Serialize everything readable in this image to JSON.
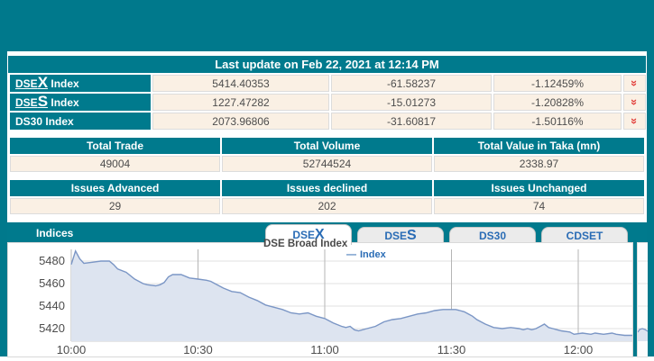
{
  "colors": {
    "teal": "#00798c",
    "header_teal": "#007a8d",
    "cell_bg": "#faf0e4",
    "tab_text": "#2a6cb5",
    "arrow_red": "#e2403c"
  },
  "update_bar": {
    "text": "Last update on Feb 22, 2021 at 12:14 PM"
  },
  "index_table": {
    "rows": [
      {
        "label_parts": [
          {
            "t": "DSE"
          },
          {
            "t": "X",
            "big": true
          }
        ],
        "label_suffix": " Index",
        "underline": true,
        "value": "5414.40353",
        "change": "-61.58237",
        "percent": "-1.12459%",
        "arrow_icon": "double-chevron-down"
      },
      {
        "label_parts": [
          {
            "t": "DSE"
          },
          {
            "t": "S",
            "big": true
          }
        ],
        "label_suffix": " Index",
        "underline": true,
        "value": "1227.47282",
        "change": "-15.01273",
        "percent": "-1.20828%",
        "arrow_icon": "double-chevron-down"
      },
      {
        "label_parts": [
          {
            "t": "DS30"
          }
        ],
        "label_suffix": " Index",
        "underline": false,
        "value": "2073.96806",
        "change": "-31.60817",
        "percent": "-1.50116%",
        "arrow_icon": "double-chevron-down"
      }
    ]
  },
  "totals_table": {
    "headers": [
      "Total Trade",
      "Total Volume",
      "Total Value in Taka (mn)"
    ],
    "values": [
      "49004",
      "52744524",
      "2338.97"
    ]
  },
  "issues_table": {
    "headers": [
      "Issues Advanced",
      "Issues declined",
      "Issues Unchanged"
    ],
    "values": [
      "29",
      "202",
      "74"
    ]
  },
  "indices_section": {
    "title": "Indices",
    "tabs": [
      {
        "parts": [
          {
            "t": "DSE"
          },
          {
            "t": "X",
            "big": true
          }
        ],
        "active": true
      },
      {
        "parts": [
          {
            "t": "DSE"
          },
          {
            "t": "S",
            "big": true
          }
        ],
        "active": false
      },
      {
        "parts": [
          {
            "t": "DS30"
          }
        ],
        "active": false
      },
      {
        "parts": [
          {
            "t": "CDSET"
          }
        ],
        "active": false
      }
    ]
  },
  "chart_data": {
    "type": "area",
    "title": "DSE Broad Index",
    "legend": [
      {
        "label": "Index"
      }
    ],
    "legend_position": "top-center",
    "grid": true,
    "x_unit": "minutes since 10:00",
    "x_tick_minutes": [
      0,
      30,
      60,
      90,
      120
    ],
    "x_tick_labels": [
      "10:00",
      "10:30",
      "11:00",
      "11:30",
      "12:00"
    ],
    "x_range_minutes": [
      0,
      133
    ],
    "y_ticks": [
      5420,
      5440,
      5460,
      5480
    ],
    "ylim": [
      5409,
      5490
    ],
    "colors": {
      "line": "#7b96c5",
      "fill": "#dde4f0",
      "axis_text": "#4d4d4d",
      "vgrid": "#b5b5b5",
      "hgrid": "#e2e2e2"
    },
    "series": [
      {
        "name": "Index",
        "points": [
          [
            0,
            5477
          ],
          [
            1,
            5489
          ],
          [
            2,
            5482
          ],
          [
            3,
            5478
          ],
          [
            5,
            5479
          ],
          [
            7,
            5480
          ],
          [
            9,
            5480
          ],
          [
            10,
            5477
          ],
          [
            11,
            5473
          ],
          [
            13,
            5470
          ],
          [
            15,
            5464
          ],
          [
            17,
            5460
          ],
          [
            18,
            5459
          ],
          [
            20,
            5458
          ],
          [
            21,
            5459
          ],
          [
            22,
            5461
          ],
          [
            23,
            5466
          ],
          [
            24,
            5468
          ],
          [
            26,
            5468
          ],
          [
            28,
            5465
          ],
          [
            30,
            5464
          ],
          [
            32,
            5463
          ],
          [
            33,
            5462
          ],
          [
            34,
            5460
          ],
          [
            36,
            5456
          ],
          [
            38,
            5453
          ],
          [
            40,
            5452
          ],
          [
            42,
            5448
          ],
          [
            44,
            5445
          ],
          [
            46,
            5441
          ],
          [
            48,
            5439
          ],
          [
            50,
            5437
          ],
          [
            52,
            5434
          ],
          [
            54,
            5433
          ],
          [
            56,
            5434
          ],
          [
            58,
            5431
          ],
          [
            60,
            5429
          ],
          [
            62,
            5425
          ],
          [
            64,
            5422
          ],
          [
            65,
            5421
          ],
          [
            66,
            5422
          ],
          [
            67,
            5419
          ],
          [
            68,
            5418
          ],
          [
            70,
            5420
          ],
          [
            72,
            5422
          ],
          [
            74,
            5426
          ],
          [
            76,
            5428
          ],
          [
            78,
            5429
          ],
          [
            80,
            5431
          ],
          [
            82,
            5433
          ],
          [
            84,
            5434
          ],
          [
            86,
            5436
          ],
          [
            88,
            5437
          ],
          [
            90,
            5437
          ],
          [
            91,
            5437
          ],
          [
            92,
            5436
          ],
          [
            93,
            5435
          ],
          [
            94,
            5433
          ],
          [
            95,
            5431
          ],
          [
            96,
            5428
          ],
          [
            98,
            5424
          ],
          [
            100,
            5421
          ],
          [
            102,
            5420
          ],
          [
            104,
            5421
          ],
          [
            106,
            5420
          ],
          [
            107,
            5419
          ],
          [
            108,
            5420
          ],
          [
            109,
            5419
          ],
          [
            110,
            5420
          ],
          [
            111,
            5422
          ],
          [
            112,
            5424
          ],
          [
            113,
            5421
          ],
          [
            114,
            5420
          ],
          [
            115,
            5419
          ],
          [
            116,
            5418
          ],
          [
            118,
            5417
          ],
          [
            119,
            5415
          ],
          [
            121,
            5416
          ],
          [
            123,
            5415
          ],
          [
            124,
            5416
          ],
          [
            126,
            5415
          ],
          [
            128,
            5416
          ],
          [
            129,
            5415
          ],
          [
            131,
            5414
          ],
          [
            133,
            5414
          ]
        ]
      }
    ]
  }
}
